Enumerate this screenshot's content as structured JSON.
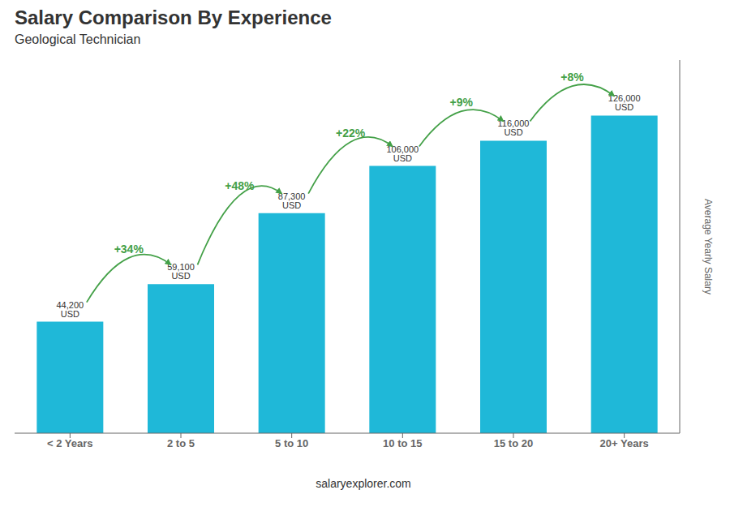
{
  "chart_data": {
    "type": "bar",
    "title": "Salary Comparison By Experience",
    "subtitle": "Geological Technician",
    "ylabel": "Average Yearly Salary",
    "categories": [
      "< 2 Years",
      "2 to 5",
      "5 to 10",
      "10 to 15",
      "15 to 20",
      "20+ Years"
    ],
    "values": [
      44200,
      59100,
      87300,
      106000,
      116000,
      126000
    ],
    "value_labels": [
      "44,200 USD",
      "59,100 USD",
      "87,300 USD",
      "106,000 USD",
      "116,000 USD",
      "126,000 USD"
    ],
    "data_labels": true,
    "color": "#1fb8d8",
    "ylim": [
      0,
      148000
    ],
    "tick_labels": "x",
    "annotations": [
      {
        "from": "< 2 Years",
        "to": "2 to 5",
        "text": "+34%"
      },
      {
        "from": "2 to 5",
        "to": "5 to 10",
        "text": "+48%"
      },
      {
        "from": "5 to 10",
        "to": "10 to 15",
        "text": "+22%"
      },
      {
        "from": "10 to 15",
        "to": "15 to 20",
        "text": "+9%"
      },
      {
        "from": "15 to 20",
        "to": "20+ Years",
        "text": "+8%"
      }
    ],
    "watermark": "salaryexplorer.com"
  }
}
